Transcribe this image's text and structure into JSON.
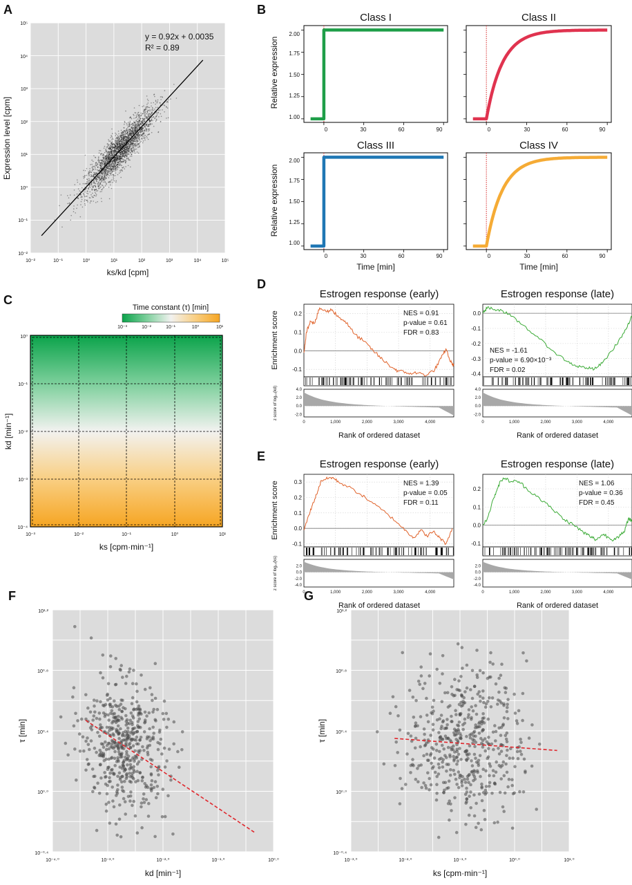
{
  "figure": {
    "panel_labels": [
      "A",
      "B",
      "C",
      "D",
      "E",
      "F",
      "G"
    ]
  },
  "chart_data": [
    {
      "id": "A",
      "type": "scatter",
      "xscale": "log10",
      "yscale": "log10",
      "xlim_exp": [
        -2,
        5
      ],
      "ylim_exp": [
        -2,
        5
      ],
      "xticks": [
        "10⁻²",
        "10⁻¹",
        "10⁰",
        "10¹",
        "10²",
        "10³",
        "10⁴",
        "10⁵"
      ],
      "yticks": [
        "10⁻²",
        "10⁻¹",
        "10⁰",
        "10¹",
        "10²",
        "10³",
        "10⁴",
        "10⁵"
      ],
      "xlabel": "ks/kd [cpm]",
      "ylabel": "Expression level [cpm]",
      "fit": {
        "slope": 0.92,
        "intercept": 0.0035,
        "x_from_exp": -1.6,
        "x_to_exp": 4.2
      },
      "annotation": [
        "y = 0.92x + 0.0035",
        "R² = 0.89"
      ],
      "point_cloud": {
        "n": 2600,
        "x_mean_exp": 1.2,
        "x_sd_exp": 0.62,
        "residual_sd_exp": 0.28,
        "color": "#222222"
      }
    },
    {
      "id": "B",
      "type": "line",
      "xlabel": "Time [min]",
      "ylabel": "Relative expression",
      "xticks": [
        0,
        30,
        60,
        90
      ],
      "yticks": [
        "1.00",
        "1.25",
        "1.50",
        "1.75",
        "2.00"
      ],
      "xlim": [
        -15,
        93
      ],
      "ylim": [
        0.96,
        2.05
      ],
      "stimulus_time": 0,
      "series": [
        {
          "name": "Class I",
          "shape": "step",
          "color": "#1e9e48",
          "start_value": 1.0,
          "end_value": 2.0
        },
        {
          "name": "Class II",
          "shape": "exponential",
          "color": "#e0334f",
          "start_value": 1.0,
          "end_value": 2.0,
          "tau": 12
        },
        {
          "name": "Class III",
          "shape": "step",
          "color": "#1f77b4",
          "start_value": 1.0,
          "end_value": 2.0
        },
        {
          "name": "Class IV",
          "shape": "exponential",
          "color": "#f5ab35",
          "start_value": 1.0,
          "end_value": 2.0,
          "tau": 12
        }
      ]
    },
    {
      "id": "C",
      "type": "heatmap",
      "xlabel": "ks [cpm·min⁻¹]",
      "ylabel": "kd [min⁻¹]",
      "xticks": [
        "10⁻³",
        "10⁻²",
        "10⁻¹",
        "10⁰",
        "10¹"
      ],
      "yticks": [
        "10⁰",
        "10⁻¹",
        "10⁻²",
        "10⁻³",
        "10⁻⁴"
      ],
      "colorbar": {
        "title": "Time constant (τ) [min]",
        "ticks": [
          "10⁻³",
          "10⁻²",
          "10⁻¹",
          "10⁰",
          "10¹"
        ],
        "colors": [
          "#0aa34a",
          "#7ccf9b",
          "#f2f2f0",
          "#f9cf83",
          "#f6a522"
        ]
      }
    },
    {
      "id": "D",
      "type": "line",
      "panels": [
        {
          "title": "Estrogen response (early)",
          "color": "#e0622a",
          "yticks": [
            "0.2",
            "0.1",
            "0.0",
            "-0.1"
          ],
          "ylim": [
            -0.14,
            0.25
          ],
          "es_points": [
            [
              0,
              -0.01
            ],
            [
              80,
              0.1
            ],
            [
              200,
              0.16
            ],
            [
              350,
              0.15
            ],
            [
              500,
              0.23
            ],
            [
              700,
              0.21
            ],
            [
              900,
              0.22
            ],
            [
              1100,
              0.18
            ],
            [
              1300,
              0.16
            ],
            [
              1600,
              0.09
            ],
            [
              1900,
              0.05
            ],
            [
              2200,
              0.0
            ],
            [
              2500,
              -0.05
            ],
            [
              2800,
              -0.09
            ],
            [
              3000,
              -0.11
            ],
            [
              3300,
              -0.12
            ],
            [
              3600,
              -0.12
            ],
            [
              3900,
              -0.13
            ],
            [
              4150,
              -0.1
            ],
            [
              4350,
              -0.04
            ],
            [
              4500,
              0.01
            ],
            [
              4650,
              -0.06
            ],
            [
              4750,
              -0.08
            ]
          ],
          "stats": [
            "NES = 0.91",
            "p-value = 0.61",
            "FDR = 0.83"
          ],
          "stats_corner": "top-right",
          "ranked_yticks": [
            "4.0",
            "2.0",
            "0.0",
            "-2.0"
          ]
        },
        {
          "title": "Estrogen response (late)",
          "color": "#3aaa35",
          "yticks": [
            "0.0",
            "-0.1",
            "-0.2",
            "-0.3",
            "-0.4"
          ],
          "ylim": [
            -0.42,
            0.06
          ],
          "es_points": [
            [
              0,
              0.0
            ],
            [
              150,
              0.04
            ],
            [
              300,
              0.03
            ],
            [
              600,
              0.02
            ],
            [
              900,
              -0.02
            ],
            [
              1300,
              -0.08
            ],
            [
              1800,
              -0.17
            ],
            [
              2300,
              -0.26
            ],
            [
              2700,
              -0.32
            ],
            [
              3000,
              -0.35
            ],
            [
              3300,
              -0.36
            ],
            [
              3550,
              -0.37
            ],
            [
              3800,
              -0.33
            ],
            [
              4100,
              -0.25
            ],
            [
              4400,
              -0.16
            ],
            [
              4600,
              -0.09
            ],
            [
              4750,
              -0.02
            ]
          ],
          "stats": [
            "NES = -1.61",
            "p-value = 6.90×10⁻³",
            "FDR = 0.02"
          ],
          "stats_corner": "bottom-left",
          "ranked_yticks": [
            "4.0",
            "2.0",
            "0.0",
            "-2.0"
          ]
        }
      ],
      "xlabel": "Rank of ordered dataset",
      "ylabel": "Enrichment score",
      "ranked_ylabel": "z score of log₁₀(kd)",
      "xticks": [
        "0",
        "1,000",
        "2,000",
        "3,000",
        "4,000"
      ],
      "xlim": [
        0,
        4750
      ]
    },
    {
      "id": "E",
      "type": "line",
      "panels": [
        {
          "title": "Estrogen response (early)",
          "color": "#e0622a",
          "yticks": [
            "0.3",
            "0.2",
            "0.1",
            "0.0",
            "-0.1"
          ],
          "ylim": [
            -0.12,
            0.35
          ],
          "es_points": [
            [
              0,
              -0.01
            ],
            [
              100,
              0.05
            ],
            [
              250,
              0.14
            ],
            [
              400,
              0.22
            ],
            [
              550,
              0.31
            ],
            [
              700,
              0.32
            ],
            [
              900,
              0.33
            ],
            [
              1100,
              0.3
            ],
            [
              1400,
              0.27
            ],
            [
              1800,
              0.22
            ],
            [
              2200,
              0.16
            ],
            [
              2600,
              0.1
            ],
            [
              3000,
              0.03
            ],
            [
              3300,
              -0.03
            ],
            [
              3500,
              -0.06
            ],
            [
              3700,
              -0.01
            ],
            [
              3900,
              -0.05
            ],
            [
              4100,
              -0.02
            ],
            [
              4300,
              -0.06
            ],
            [
              4500,
              -0.1
            ],
            [
              4700,
              0.0
            ]
          ],
          "stats": [
            "NES = 1.39",
            "p-value = 0.05",
            "FDR = 0.11"
          ],
          "stats_corner": "top-right",
          "ranked_yticks": [
            "2.0",
            "0.0",
            "-2.0",
            "-4.0"
          ]
        },
        {
          "title": "Estrogen response (late)",
          "color": "#3aaa35",
          "yticks": [
            "0.2",
            "0.1",
            "0.0",
            "-0.1"
          ],
          "ylim": [
            -0.12,
            0.28
          ],
          "es_points": [
            [
              0,
              0.0
            ],
            [
              150,
              0.04
            ],
            [
              350,
              0.15
            ],
            [
              500,
              0.22
            ],
            [
              650,
              0.26
            ],
            [
              900,
              0.24
            ],
            [
              1150,
              0.24
            ],
            [
              1400,
              0.2
            ],
            [
              1800,
              0.15
            ],
            [
              2200,
              0.09
            ],
            [
              2600,
              0.03
            ],
            [
              2900,
              0.0
            ],
            [
              3200,
              -0.04
            ],
            [
              3400,
              -0.06
            ],
            [
              3600,
              -0.08
            ],
            [
              3850,
              -0.05
            ],
            [
              4100,
              -0.08
            ],
            [
              4350,
              -0.06
            ],
            [
              4500,
              -0.04
            ],
            [
              4650,
              0.04
            ],
            [
              4750,
              0.02
            ]
          ],
          "stats": [
            "NES = 1.06",
            "p-value = 0.36",
            "FDR = 0.45"
          ],
          "stats_corner": "top-right",
          "ranked_yticks": [
            "2.0",
            "0.0",
            "-2.0",
            "-4.0"
          ]
        }
      ],
      "xlabel": "Rank of ordered dataset",
      "ylabel": "Enrichment score",
      "ranked_ylabel": "z score of log₁₀(ks)",
      "xticks": [
        "0",
        "1,000",
        "2,000",
        "3,000",
        "4,000"
      ],
      "xlim": [
        0,
        4750
      ]
    },
    {
      "id": "F",
      "type": "scatter",
      "xscale": "log10",
      "yscale": "log10",
      "xlim_exp": [
        -4.0,
        0.0
      ],
      "ylim_exp": [
        -0.4,
        1.2
      ],
      "xticks": [
        "10⁻⁴·⁰",
        "10⁻³·⁰",
        "10⁻²·⁰",
        "10⁻¹·⁰",
        "10⁰·⁰"
      ],
      "yticks": [
        "10¹·²",
        "10⁰·⁸",
        "10⁰·⁴",
        "10⁰·⁰",
        "10⁻⁰·⁴"
      ],
      "xlabel": "kd [min⁻¹]",
      "ylabel": "τ [min]",
      "trend": {
        "x_from_exp": -3.4,
        "y_from_exp": 0.47,
        "x_to_exp": -0.35,
        "y_to_exp": -0.27,
        "color": "#e0262c"
      },
      "point_cloud": {
        "n": 520,
        "x_center_exp": -2.7,
        "x_spread_exp": 0.38,
        "y_center_exp": 0.3,
        "y_spread_exp": 0.22,
        "color": "#4a4a4a"
      }
    },
    {
      "id": "G",
      "type": "scatter",
      "xscale": "log10",
      "yscale": "log10",
      "xlim_exp": [
        -3.0,
        1.0
      ],
      "ylim_exp": [
        -0.4,
        1.2
      ],
      "xticks": [
        "10⁻³·⁰",
        "10⁻²·⁰",
        "10⁻¹·⁰",
        "10⁰·⁰",
        "10¹·⁰"
      ],
      "yticks": [
        "10¹·²",
        "10⁰·⁸",
        "10⁰·⁴",
        "10⁰·⁰",
        "10⁻⁰·⁴"
      ],
      "xlabel": "ks [cpm·min⁻¹]",
      "ylabel": "τ [min]",
      "trend": {
        "x_from_exp": -2.2,
        "y_from_exp": 0.35,
        "x_to_exp": 0.78,
        "y_to_exp": 0.27,
        "color": "#e0262c"
      },
      "point_cloud": {
        "n": 520,
        "x_center_exp": -0.9,
        "x_spread_exp": 0.55,
        "y_center_exp": 0.34,
        "y_spread_exp": 0.25,
        "color": "#4a4a4a"
      }
    }
  ]
}
